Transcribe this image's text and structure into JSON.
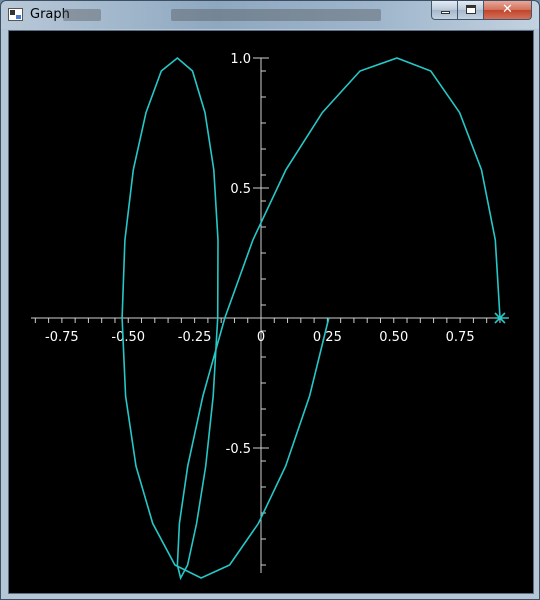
{
  "window": {
    "title": "Graph",
    "icon": "app-window-icon",
    "controls": {
      "minimize": "minimize-icon",
      "maximize": "maximize-icon",
      "close": "close-icon"
    }
  },
  "colors": {
    "curve": "#27c7c7",
    "axis": "#cfcfcf",
    "background": "#000000",
    "label": "#ffffff"
  },
  "chart_data": {
    "type": "line",
    "xlim": [
      -0.9,
      0.9
    ],
    "ylim": [
      -1.0,
      1.0
    ],
    "x_ticks": [
      {
        "value": -0.75,
        "label": "-0.75"
      },
      {
        "value": -0.5,
        "label": "-0.50"
      },
      {
        "value": -0.25,
        "label": "-0.25"
      },
      {
        "value": 0,
        "label": "0"
      },
      {
        "value": 0.25,
        "label": "0.25"
      },
      {
        "value": 0.5,
        "label": "0.50"
      },
      {
        "value": 0.75,
        "label": "0.75"
      }
    ],
    "y_ticks": [
      {
        "value": 1.0,
        "label": "1.0"
      },
      {
        "value": 0.5,
        "label": "0.5"
      },
      {
        "value": -0.5,
        "label": "-0.5"
      }
    ],
    "grid": false,
    "series": [
      {
        "x": [
          0.9,
          0.8823,
          0.8305,
          0.7479,
          0.6395,
          0.5119,
          0.3729,
          0.2307,
          0.0938,
          -0.0304,
          -0.1362,
          -0.2189,
          -0.2761,
          -0.3074,
          -0.3149,
          -0.3027,
          -0.2764,
          -0.2426,
          -0.2082,
          -0.1799,
          -0.1631,
          -0.1618,
          -0.1779,
          -0.2109,
          -0.2581,
          -0.315,
          -0.3755,
          -0.433,
          -0.4808,
          -0.5126,
          -0.5233,
          -0.5098,
          -0.4709,
          -0.4079,
          -0.3243,
          -0.2255,
          -0.1183,
          -0.0098,
          0.0927,
          0.1831,
          0.2553
        ],
        "y": [
          0,
          0.3,
          0.57,
          0.79,
          0.95,
          1.0,
          0.95,
          0.79,
          0.57,
          0.3,
          0,
          -0.3,
          -0.57,
          -0.79,
          -0.95,
          -1.0,
          -0.95,
          -0.79,
          -0.57,
          -0.3,
          0,
          0.3,
          0.57,
          0.79,
          0.95,
          1.0,
          0.95,
          0.79,
          0.57,
          0.3,
          0,
          -0.3,
          -0.57,
          -0.79,
          -0.95,
          -1.0,
          -0.95,
          -0.79,
          -0.57,
          -0.3,
          0
        ]
      }
    ]
  }
}
